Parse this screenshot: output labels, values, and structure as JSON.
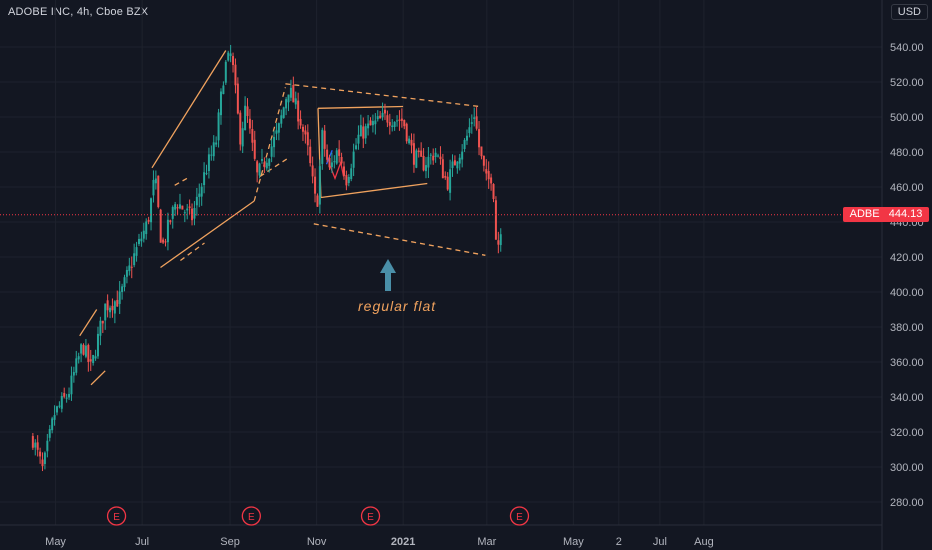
{
  "chart_data": {
    "type": "candlestick",
    "title": "ADOBE INC, 4h, Cboe BZX",
    "currency": "USD",
    "y_ticks": [
      280,
      300,
      320,
      340,
      360,
      380,
      400,
      420,
      440,
      460,
      480,
      500,
      520,
      540
    ],
    "ylim": [
      270,
      555
    ],
    "x_ticks": [
      "May",
      "Jul",
      "Sep",
      "Nov",
      "2021",
      "Mar",
      "May",
      "2",
      "Jul",
      "Aug"
    ],
    "grid": true,
    "last_price": {
      "symbol": "ADBE",
      "value": "444.13"
    },
    "earnings_markers": [
      "E",
      "E",
      "E",
      "E"
    ],
    "annotation": "regular flat",
    "price_path": [
      [
        "2020-04-15",
        316
      ],
      [
        "2020-04-22",
        298
      ],
      [
        "2020-04-30",
        330
      ],
      [
        "2020-05-10",
        342
      ],
      [
        "2020-05-20",
        370
      ],
      [
        "2020-05-26",
        356
      ],
      [
        "2020-06-05",
        392
      ],
      [
        "2020-06-15",
        396
      ],
      [
        "2020-06-25",
        420
      ],
      [
        "2020-07-05",
        440
      ],
      [
        "2020-07-10",
        466
      ],
      [
        "2020-07-15",
        425
      ],
      [
        "2020-07-25",
        452
      ],
      [
        "2020-08-05",
        442
      ],
      [
        "2020-08-15",
        470
      ],
      [
        "2020-08-22",
        485
      ],
      [
        "2020-08-28",
        528
      ],
      [
        "2020-09-02",
        536
      ],
      [
        "2020-09-08",
        488
      ],
      [
        "2020-09-12",
        505
      ],
      [
        "2020-09-20",
        466
      ],
      [
        "2020-09-25",
        474
      ],
      [
        "2020-10-05",
        492
      ],
      [
        "2020-10-12",
        517
      ],
      [
        "2020-10-20",
        500
      ],
      [
        "2020-10-26",
        480
      ],
      [
        "2020-11-01",
        447
      ],
      [
        "2020-11-05",
        489
      ],
      [
        "2020-11-10",
        469
      ],
      [
        "2020-11-16",
        482
      ],
      [
        "2020-11-22",
        465
      ],
      [
        "2020-12-01",
        490
      ],
      [
        "2020-12-10",
        495
      ],
      [
        "2020-12-20",
        500
      ],
      [
        "2021-01-01",
        498
      ],
      [
        "2021-01-08",
        478
      ],
      [
        "2021-01-15",
        473
      ],
      [
        "2021-01-24",
        480
      ],
      [
        "2021-02-01",
        462
      ],
      [
        "2021-02-08",
        478
      ],
      [
        "2021-02-14",
        486
      ],
      [
        "2021-02-20",
        503
      ],
      [
        "2021-02-24",
        480
      ],
      [
        "2021-03-01",
        462
      ],
      [
        "2021-03-05",
        468
      ],
      [
        "2021-03-08",
        422
      ],
      [
        "2021-03-12",
        444.13
      ]
    ],
    "drawn_lines": [
      {
        "style": "solid",
        "color": "#f0a25e",
        "points": [
          [
            "2020-07-08",
            471
          ],
          [
            "2020-08-29",
            538
          ]
        ]
      },
      {
        "style": "solid",
        "color": "#f0a25e",
        "points": [
          [
            "2020-07-14",
            414
          ],
          [
            "2020-09-18",
            452
          ]
        ]
      },
      {
        "style": "dashed",
        "color": "#f0a25e",
        "points": [
          [
            "2020-07-24",
            461
          ],
          [
            "2020-08-04",
            466
          ]
        ]
      },
      {
        "style": "dashed",
        "color": "#f0a25e",
        "points": [
          [
            "2020-07-28",
            418
          ],
          [
            "2020-08-14",
            428
          ]
        ]
      },
      {
        "style": "dashed",
        "color": "#f0a25e",
        "points": [
          [
            "2020-09-18",
            452
          ],
          [
            "2020-10-10",
            517
          ]
        ]
      },
      {
        "style": "dashed",
        "color": "#f0a25e",
        "points": [
          [
            "2020-09-22",
            466
          ],
          [
            "2020-10-11",
            476
          ]
        ]
      },
      {
        "style": "dashed",
        "color": "#f0a25e",
        "points": [
          [
            "2020-10-10",
            519
          ],
          [
            "2021-02-24",
            506
          ]
        ]
      },
      {
        "style": "dashed",
        "color": "#f0a25e",
        "points": [
          [
            "2020-10-30",
            439
          ],
          [
            "2021-02-28",
            421
          ]
        ]
      },
      {
        "style": "solid",
        "color": "#f0a25e",
        "points": [
          [
            "2020-11-02",
            505
          ],
          [
            "2021-01-01",
            506
          ]
        ]
      },
      {
        "style": "solid",
        "color": "#f0a25e",
        "points": [
          [
            "2020-11-04",
            454
          ],
          [
            "2021-01-18",
            462
          ]
        ]
      },
      {
        "style": "solid",
        "color": "#f0a25e",
        "points": [
          [
            "2020-11-02",
            505
          ],
          [
            "2020-11-04",
            454
          ]
        ]
      },
      {
        "style": "solid",
        "color": "#f0a25e",
        "points": [
          [
            "2020-05-18",
            375
          ],
          [
            "2020-05-30",
            390
          ]
        ]
      },
      {
        "style": "solid",
        "color": "#f0a25e",
        "points": [
          [
            "2020-05-26",
            347
          ],
          [
            "2020-06-05",
            355
          ]
        ]
      },
      {
        "style": "solid",
        "color": "#f23645",
        "points": [
          [
            "2020-11-10",
            473
          ],
          [
            "2020-11-14",
            465
          ],
          [
            "2020-11-18",
            474
          ],
          [
            "2020-11-20",
            466
          ]
        ]
      },
      {
        "style": "solid",
        "color": "#2962ff",
        "points": [
          [
            "2020-11-08",
            473
          ],
          [
            "2020-11-12",
            481
          ]
        ]
      }
    ]
  }
}
